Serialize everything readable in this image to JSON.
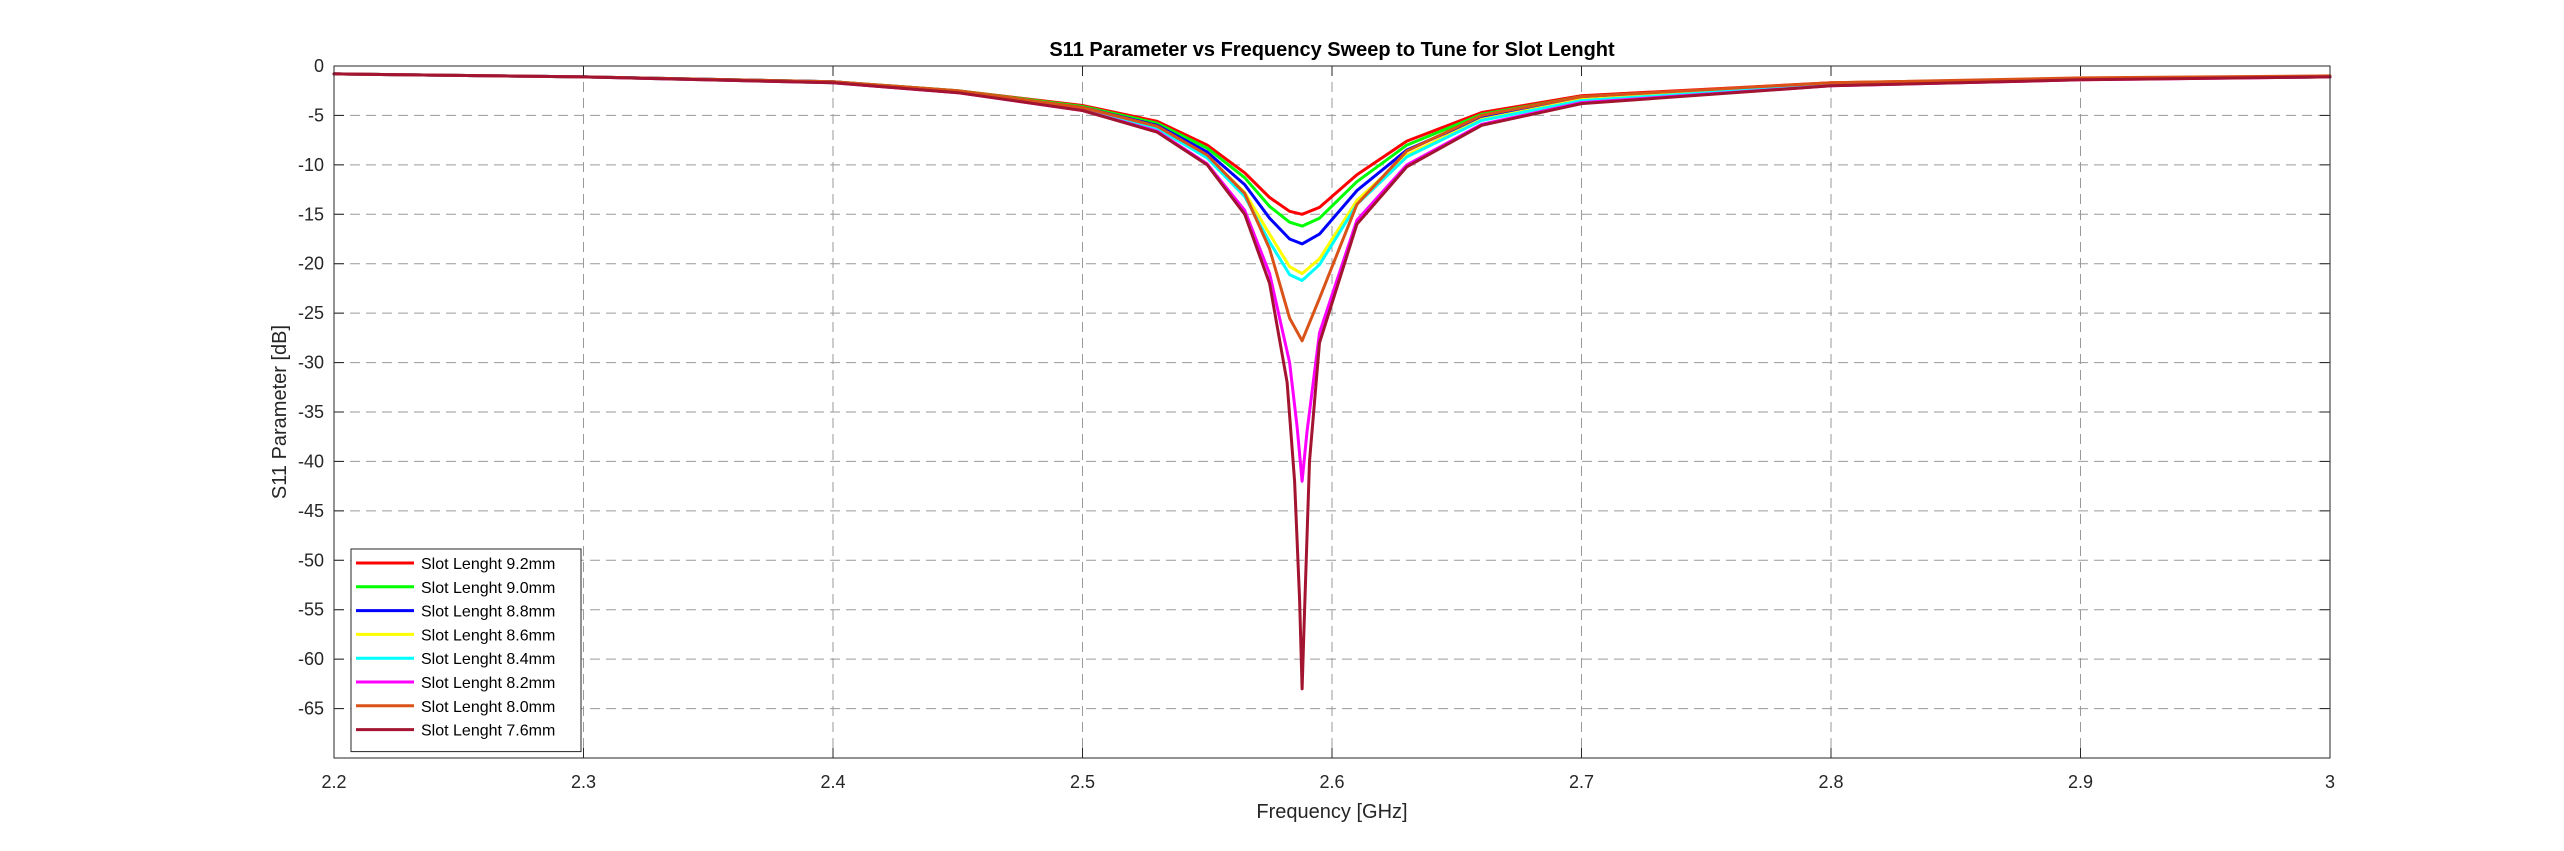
{
  "chart_data": {
    "type": "line",
    "title": "S11 Parameter vs Frequency Sweep to Tune for Slot Lenght",
    "xlabel": "Frequency [GHz]",
    "ylabel": "S11 Parameter [dB]",
    "xlim": [
      2.2,
      3.0
    ],
    "ylim": [
      -70,
      0
    ],
    "xticks": [
      2.2,
      2.3,
      2.4,
      2.5,
      2.6,
      2.7,
      2.8,
      2.9,
      3.0
    ],
    "xtick_labels": [
      "2.2",
      "2.3",
      "2.4",
      "2.5",
      "2.6",
      "2.7",
      "2.8",
      "2.9",
      "3"
    ],
    "yticks": [
      0,
      -5,
      -10,
      -15,
      -20,
      -25,
      -30,
      -35,
      -40,
      -45,
      -50,
      -55,
      -60,
      -65
    ],
    "ytick_labels": [
      "0",
      "-5",
      "-10",
      "-15",
      "-20",
      "-25",
      "-30",
      "-35",
      "-40",
      "-45",
      "-50",
      "-55",
      "-60",
      "-65"
    ],
    "grid": true,
    "legend_position": "bottom-left",
    "series": [
      {
        "name": "Slot Lenght 9.2mm",
        "color": "#ff0000",
        "x": [
          2.2,
          2.3,
          2.4,
          2.45,
          2.5,
          2.53,
          2.55,
          2.565,
          2.575,
          2.583,
          2.588,
          2.595,
          2.61,
          2.63,
          2.66,
          2.7,
          2.8,
          2.9,
          3.0
        ],
        "y": [
          -0.8,
          -1.1,
          -1.6,
          -2.5,
          -4.0,
          -5.6,
          -8.0,
          -10.8,
          -13.3,
          -14.7,
          -15.0,
          -14.3,
          -11.0,
          -7.6,
          -4.7,
          -3.0,
          -1.7,
          -1.3,
          -1.1
        ]
      },
      {
        "name": "Slot Lenght 9.0mm",
        "color": "#00ff00",
        "x": [
          2.2,
          2.3,
          2.4,
          2.45,
          2.5,
          2.53,
          2.55,
          2.565,
          2.575,
          2.583,
          2.588,
          2.595,
          2.61,
          2.63,
          2.66,
          2.7,
          2.8,
          2.9,
          3.0
        ],
        "y": [
          -0.8,
          -1.1,
          -1.6,
          -2.5,
          -4.1,
          -5.8,
          -8.3,
          -11.3,
          -14.2,
          -15.8,
          -16.2,
          -15.4,
          -11.7,
          -8.0,
          -4.9,
          -3.1,
          -1.8,
          -1.3,
          -1.1
        ]
      },
      {
        "name": "Slot Lenght 8.8mm",
        "color": "#0000ff",
        "x": [
          2.2,
          2.3,
          2.4,
          2.45,
          2.5,
          2.53,
          2.55,
          2.565,
          2.575,
          2.583,
          2.588,
          2.595,
          2.61,
          2.63,
          2.66,
          2.7,
          2.8,
          2.9,
          3.0
        ],
        "y": [
          -0.8,
          -1.1,
          -1.6,
          -2.6,
          -4.2,
          -6.0,
          -8.7,
          -12.0,
          -15.4,
          -17.5,
          -18.0,
          -17.0,
          -12.6,
          -8.5,
          -5.2,
          -3.3,
          -1.8,
          -1.3,
          -1.1
        ]
      },
      {
        "name": "Slot Lenght 8.6mm",
        "color": "#ffff00",
        "x": [
          2.2,
          2.3,
          2.4,
          2.45,
          2.5,
          2.53,
          2.55,
          2.565,
          2.575,
          2.583,
          2.588,
          2.595,
          2.61,
          2.63,
          2.66,
          2.7,
          2.8,
          2.9,
          3.0
        ],
        "y": [
          -0.8,
          -1.1,
          -1.7,
          -2.6,
          -4.3,
          -6.2,
          -9.1,
          -12.8,
          -17.0,
          -20.3,
          -21.0,
          -19.5,
          -13.6,
          -9.0,
          -5.4,
          -3.4,
          -1.9,
          -1.3,
          -1.1
        ]
      },
      {
        "name": "Slot Lenght 8.4mm",
        "color": "#00ffff",
        "x": [
          2.2,
          2.3,
          2.4,
          2.45,
          2.5,
          2.53,
          2.55,
          2.565,
          2.575,
          2.583,
          2.588,
          2.595,
          2.61,
          2.63,
          2.66,
          2.7,
          2.8,
          2.9,
          3.0
        ],
        "y": [
          -0.8,
          -1.1,
          -1.7,
          -2.6,
          -4.3,
          -6.3,
          -9.3,
          -13.2,
          -17.8,
          -21.1,
          -21.7,
          -20.1,
          -14.0,
          -9.2,
          -5.5,
          -3.5,
          -1.9,
          -1.3,
          -1.1
        ]
      },
      {
        "name": "Slot Lenght 8.2mm",
        "color": "#ff00ff",
        "x": [
          2.2,
          2.3,
          2.4,
          2.45,
          2.5,
          2.53,
          2.55,
          2.565,
          2.575,
          2.583,
          2.586,
          2.588,
          2.59,
          2.595,
          2.61,
          2.63,
          2.66,
          2.7,
          2.8,
          2.9,
          3.0
        ],
        "y": [
          -0.8,
          -1.1,
          -1.7,
          -2.7,
          -4.5,
          -6.6,
          -9.9,
          -14.6,
          -21.0,
          -30.0,
          -36.5,
          -42.0,
          -37.0,
          -27.0,
          -15.6,
          -10.0,
          -5.9,
          -3.7,
          -2.0,
          -1.4,
          -1.1
        ]
      },
      {
        "name": "Slot Lenght 8.0mm",
        "color": "#d95319",
        "x": [
          2.2,
          2.3,
          2.4,
          2.45,
          2.5,
          2.53,
          2.55,
          2.565,
          2.575,
          2.583,
          2.588,
          2.595,
          2.61,
          2.63,
          2.66,
          2.7,
          2.8,
          2.9,
          3.0
        ],
        "y": [
          -0.8,
          -1.1,
          -1.6,
          -2.5,
          -4.2,
          -6.1,
          -9.0,
          -12.9,
          -18.5,
          -25.5,
          -27.8,
          -23.5,
          -14.0,
          -8.6,
          -5.0,
          -3.1,
          -1.7,
          -1.2,
          -1.0
        ]
      },
      {
        "name": "Slot Lenght 7.6mm",
        "color": "#a2142f",
        "x": [
          2.2,
          2.3,
          2.4,
          2.45,
          2.5,
          2.53,
          2.55,
          2.565,
          2.575,
          2.582,
          2.585,
          2.587,
          2.588,
          2.589,
          2.591,
          2.595,
          2.61,
          2.63,
          2.66,
          2.7,
          2.8,
          2.9,
          3.0
        ],
        "y": [
          -0.8,
          -1.1,
          -1.7,
          -2.7,
          -4.5,
          -6.7,
          -10.0,
          -15.0,
          -22.0,
          -32.0,
          -42.0,
          -54.0,
          -63.0,
          -55.0,
          -40.0,
          -28.0,
          -16.0,
          -10.2,
          -6.0,
          -3.8,
          -2.0,
          -1.4,
          -1.1
        ]
      }
    ]
  }
}
